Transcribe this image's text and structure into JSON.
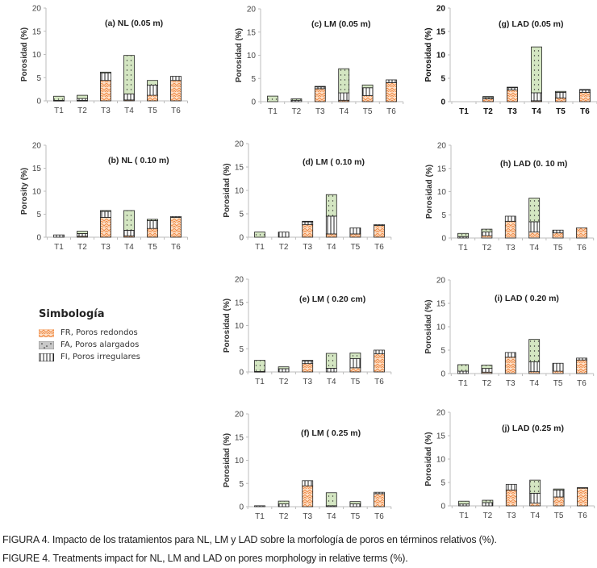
{
  "legend": {
    "title": "Simbología",
    "items": [
      {
        "key": "FR",
        "label": "FR, Poros redondos",
        "pattern": "zigzag",
        "color": "#f4a46c"
      },
      {
        "key": "FA",
        "label": "FA, Poros alargados",
        "pattern": "dots",
        "color": "#d8e8c8"
      },
      {
        "key": "FI",
        "label": "FI, Poros irregulares",
        "pattern": "vertical-lines",
        "color": "#ffffff"
      }
    ]
  },
  "caption": {
    "es": "FIGURA 4. Impacto de los tratamientos para NL, LM y LAD sobre la morfología de poros en términos relativos (%).",
    "en": "FIGURE 4. Treatments impact for NL, LM and LAD on pores morphology in relative terms (%)."
  },
  "chart_data": [
    {
      "id": "a",
      "type": "bar",
      "stacked": true,
      "title": "(a) NL (0.05 m)",
      "ylabel": "Porosidad (%)",
      "ylim": [
        0,
        20
      ],
      "yticks": [
        0,
        5,
        10,
        15,
        20
      ],
      "categories": [
        "T1",
        "T2",
        "T3",
        "T4",
        "T5",
        "T6"
      ],
      "series": [
        {
          "name": "FR",
          "values": [
            0.0,
            0.1,
            4.4,
            0.2,
            1.2,
            4.4
          ]
        },
        {
          "name": "FI",
          "values": [
            0.1,
            0.4,
            1.6,
            1.3,
            2.2,
            0.9
          ]
        },
        {
          "name": "FA",
          "values": [
            0.9,
            0.7,
            0.2,
            8.3,
            1.0,
            0.0
          ]
        }
      ]
    },
    {
      "id": "b",
      "type": "bar",
      "stacked": true,
      "title": "(b) NL ( 0.10 m)",
      "ylabel": "Porosity (%)",
      "ylim": [
        0,
        20
      ],
      "yticks": [
        0,
        5,
        10,
        15,
        20
      ],
      "categories": [
        "T1",
        "T2",
        "T3",
        "T4",
        "T5",
        "T6"
      ],
      "series": [
        {
          "name": "FR",
          "values": [
            0.0,
            0.2,
            4.3,
            0.3,
            1.9,
            4.3
          ]
        },
        {
          "name": "FI",
          "values": [
            0.5,
            0.6,
            1.3,
            1.2,
            1.7,
            0.2
          ]
        },
        {
          "name": "FA",
          "values": [
            0.0,
            0.5,
            0.2,
            4.3,
            0.3,
            0.0
          ]
        }
      ]
    },
    {
      "id": "c",
      "type": "bar",
      "stacked": true,
      "title": "(c) LM (0.05 m)",
      "ylabel": "Porosidad (%)",
      "ylim": [
        0,
        20
      ],
      "yticks": [
        0,
        5,
        10,
        15,
        20
      ],
      "categories": [
        "T1",
        "T2",
        "T3",
        "T4",
        "T5",
        "T6"
      ],
      "series": [
        {
          "name": "FR",
          "values": [
            0.0,
            0.0,
            2.8,
            0.3,
            1.3,
            4.1
          ]
        },
        {
          "name": "FI",
          "values": [
            0.0,
            0.3,
            0.4,
            1.6,
            1.7,
            0.6
          ]
        },
        {
          "name": "FA",
          "values": [
            1.2,
            0.3,
            0.1,
            5.2,
            0.6,
            0.0
          ]
        }
      ]
    },
    {
      "id": "d",
      "type": "bar",
      "stacked": true,
      "title": "(d) LM ( 0.10 m)",
      "ylabel": "Porosidad (%)",
      "ylim": [
        0,
        20
      ],
      "yticks": [
        0,
        5,
        10,
        15,
        20
      ],
      "categories": [
        "T1",
        "T2",
        "T3",
        "T4",
        "T5",
        "T6"
      ],
      "series": [
        {
          "name": "FR",
          "values": [
            0.0,
            0.0,
            2.7,
            0.7,
            0.7,
            2.5
          ]
        },
        {
          "name": "FI",
          "values": [
            0.0,
            1.1,
            0.6,
            3.8,
            1.3,
            0.2
          ]
        },
        {
          "name": "FA",
          "values": [
            1.1,
            0.0,
            0.1,
            4.6,
            0.0,
            0.0
          ]
        }
      ]
    },
    {
      "id": "e",
      "type": "bar",
      "stacked": true,
      "title": "(e) LM ( 0.20 cm)",
      "ylabel": "Porosidad (%)",
      "ylim": [
        0,
        20
      ],
      "yticks": [
        0,
        5,
        10,
        15,
        20
      ],
      "categories": [
        "T1",
        "T2",
        "T3",
        "T4",
        "T5",
        "T6"
      ],
      "series": [
        {
          "name": "FR",
          "values": [
            0.0,
            0.0,
            1.8,
            0.0,
            0.9,
            3.9
          ]
        },
        {
          "name": "FI",
          "values": [
            0.1,
            0.7,
            0.6,
            0.8,
            2.0,
            0.8
          ]
        },
        {
          "name": "FA",
          "values": [
            2.4,
            0.4,
            0.1,
            3.2,
            1.2,
            0.0
          ]
        }
      ]
    },
    {
      "id": "f",
      "type": "bar",
      "stacked": true,
      "title": "(f) LM ( 0.25 m)",
      "ylabel": "Porosidad (%)",
      "ylim": [
        0,
        20
      ],
      "yticks": [
        0,
        5,
        10,
        15,
        20
      ],
      "categories": [
        "T1",
        "T2",
        "T3",
        "T4",
        "T5",
        "T6"
      ],
      "series": [
        {
          "name": "FR",
          "values": [
            0.0,
            0.0,
            4.5,
            0.0,
            0.0,
            2.8
          ]
        },
        {
          "name": "FI",
          "values": [
            0.2,
            0.6,
            1.1,
            0.2,
            0.6,
            0.3
          ]
        },
        {
          "name": "FA",
          "values": [
            0.0,
            0.6,
            0.0,
            2.8,
            0.5,
            0.0
          ]
        }
      ]
    },
    {
      "id": "g",
      "type": "bar",
      "stacked": true,
      "title": "(g) LAD (0.05 m)",
      "ylabel": "Porosidad (%)",
      "ylim": [
        0,
        20
      ],
      "yticks": [
        0,
        5,
        10,
        15,
        20
      ],
      "bold_labels": true,
      "categories": [
        "T1",
        "T2",
        "T3",
        "T4",
        "T5",
        "T6"
      ],
      "series": [
        {
          "name": "FR",
          "values": [
            0.0,
            0.6,
            2.5,
            0.2,
            0.8,
            2.0
          ]
        },
        {
          "name": "FI",
          "values": [
            0.0,
            0.3,
            0.5,
            1.7,
            1.2,
            0.5
          ]
        },
        {
          "name": "FA",
          "values": [
            0.0,
            0.2,
            0.1,
            9.8,
            0.2,
            0.1
          ]
        }
      ]
    },
    {
      "id": "h",
      "type": "bar",
      "stacked": true,
      "title": "(h) LAD (0. 10 m)",
      "ylabel": "Porosidad (%)",
      "ylim": [
        0,
        20
      ],
      "yticks": [
        0,
        5,
        10,
        15,
        20
      ],
      "categories": [
        "T1",
        "T2",
        "T3",
        "T4",
        "T5",
        "T6"
      ],
      "series": [
        {
          "name": "FR",
          "values": [
            0.0,
            0.5,
            3.6,
            1.3,
            1.1,
            2.2
          ]
        },
        {
          "name": "FI",
          "values": [
            0.3,
            0.8,
            1.1,
            2.2,
            0.6,
            0.0
          ]
        },
        {
          "name": "FA",
          "values": [
            0.7,
            0.6,
            0.0,
            5.1,
            0.0,
            0.0
          ]
        }
      ]
    },
    {
      "id": "i",
      "type": "bar",
      "stacked": true,
      "title": "(i)  LAD ( 0.20 m)",
      "ylabel": "Porosidad (%)",
      "ylim": [
        0,
        20
      ],
      "yticks": [
        0,
        5,
        10,
        15,
        20
      ],
      "categories": [
        "T1",
        "T2",
        "T3",
        "T4",
        "T5",
        "T6"
      ],
      "series": [
        {
          "name": "FR",
          "values": [
            0.0,
            0.3,
            3.5,
            0.4,
            0.5,
            2.9
          ]
        },
        {
          "name": "FI",
          "values": [
            0.5,
            0.8,
            1.0,
            2.1,
            1.7,
            0.4
          ]
        },
        {
          "name": "FA",
          "values": [
            1.4,
            0.7,
            0.0,
            4.8,
            0.0,
            0.0
          ]
        }
      ]
    },
    {
      "id": "j",
      "type": "bar",
      "stacked": true,
      "title": "(j) LAD (0.25 m)",
      "ylabel": "Porosidad (%)",
      "ylim": [
        0,
        20
      ],
      "yticks": [
        0,
        5,
        10,
        15,
        20
      ],
      "categories": [
        "T1",
        "T2",
        "T3",
        "T4",
        "T5",
        "T6"
      ],
      "series": [
        {
          "name": "FR",
          "values": [
            0.0,
            0.0,
            3.4,
            0.6,
            1.9,
            3.8
          ]
        },
        {
          "name": "FI",
          "values": [
            0.4,
            0.7,
            1.2,
            2.1,
            1.5,
            0.1
          ]
        },
        {
          "name": "FA",
          "values": [
            0.6,
            0.5,
            0.0,
            2.8,
            0.2,
            0.0
          ]
        }
      ]
    }
  ]
}
